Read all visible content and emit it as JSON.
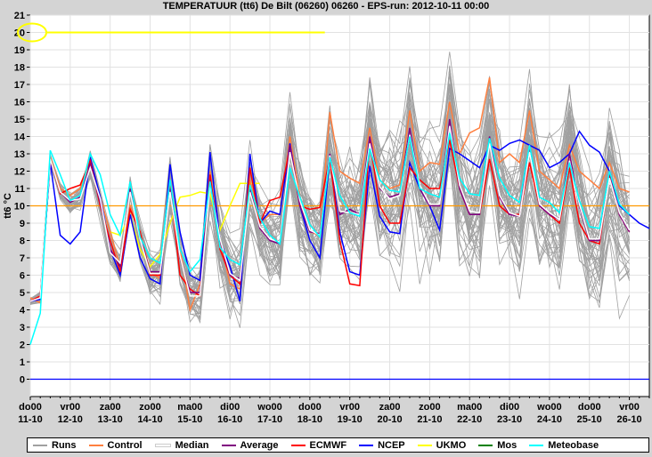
{
  "chart_data": {
    "type": "line",
    "title": "TEMPERATUUR (tt6) De Bilt (06260) 06260 - EPS-run: 2012-10-11 00:00",
    "ylabel": "tt6 °C",
    "xlabel": "",
    "ylim": [
      -1,
      21
    ],
    "yticks": [
      0,
      1,
      2,
      3,
      4,
      5,
      6,
      7,
      8,
      9,
      10,
      11,
      12,
      13,
      14,
      15,
      16,
      17,
      18,
      19,
      20,
      21
    ],
    "x_step_hours": 6,
    "xlim": [
      0,
      62
    ],
    "xticks": [
      {
        "x": 0,
        "day": "do00",
        "date": "11-10"
      },
      {
        "x": 4,
        "day": "vr00",
        "date": "12-10"
      },
      {
        "x": 8,
        "day": "za00",
        "date": "13-10"
      },
      {
        "x": 12,
        "day": "zo00",
        "date": "14-10"
      },
      {
        "x": 16,
        "day": "ma00",
        "date": "15-10"
      },
      {
        "x": 20,
        "day": "di00",
        "date": "16-10"
      },
      {
        "x": 24,
        "day": "wo00",
        "date": "17-10"
      },
      {
        "x": 28,
        "day": "do00",
        "date": "18-10"
      },
      {
        "x": 32,
        "day": "vr00",
        "date": "19-10"
      },
      {
        "x": 36,
        "day": "za00",
        "date": "20-10"
      },
      {
        "x": 40,
        "day": "zo00",
        "date": "21-10"
      },
      {
        "x": 44,
        "day": "ma00",
        "date": "22-10"
      },
      {
        "x": 48,
        "day": "di00",
        "date": "23-10"
      },
      {
        "x": 52,
        "day": "wo00",
        "date": "24-10"
      },
      {
        "x": 56,
        "day": "do00",
        "date": "25-10"
      },
      {
        "x": 60,
        "day": "vr00",
        "date": "26-10"
      }
    ],
    "reference_lines": [
      {
        "y": 10,
        "color": "#ff9900"
      },
      {
        "y": 0,
        "color": "#0000ff"
      }
    ],
    "highlight": {
      "y": 20,
      "x_end": 29.5,
      "color": "#ffff00"
    },
    "grid": true,
    "legend_position": "bottom",
    "series": [
      {
        "name": "Control",
        "color": "#ff7f3f",
        "values": [
          4.7,
          4.4,
          12.8,
          11,
          10.6,
          11,
          12.5,
          10.5,
          8.5,
          6.5,
          10,
          8.5,
          6.2,
          5.8,
          11,
          7.5,
          4,
          5.5,
          12,
          8,
          5.5,
          5.2,
          11.5,
          9,
          9.5,
          9.5,
          14,
          10.5,
          8.5,
          8.3,
          15.4,
          12,
          11.6,
          11.3,
          14.5,
          11.5,
          11,
          11.2,
          15.5,
          12,
          12.5,
          12.4,
          16,
          13,
          14.2,
          14.5,
          17.4,
          12.5,
          13,
          12.5,
          15.5,
          12,
          11.5,
          11,
          13.5,
          12,
          11.5,
          11,
          12.5,
          11,
          10.8,
          null,
          null
        ]
      },
      {
        "name": "Average",
        "color": "#800080",
        "values": [
          4.5,
          4.7,
          12.6,
          10.8,
          10.2,
          10.5,
          12.4,
          10.2,
          7.5,
          6.5,
          11,
          8.2,
          6.2,
          6.2,
          11,
          7,
          5,
          5,
          11.5,
          8,
          6,
          5.8,
          11,
          8.7,
          8,
          7.8,
          13.5,
          10,
          8.5,
          8.4,
          13,
          9.5,
          9.8,
          9.5,
          14,
          11,
          10.5,
          10.7,
          14.5,
          11,
          10,
          10,
          15,
          11,
          9.5,
          9.5,
          14,
          10.5,
          9.5,
          9.4,
          13.5,
          10,
          9.5,
          9.2,
          13,
          10,
          8,
          8,
          12,
          9.5,
          8.5,
          null,
          null
        ]
      },
      {
        "name": "ECMWF",
        "color": "#ff0000",
        "values": [
          4.5,
          4.8,
          12.7,
          10.7,
          11,
          11.2,
          12.6,
          10,
          8,
          6.2,
          9.8,
          8.5,
          6,
          6,
          11.2,
          6,
          5.2,
          4.8,
          11.8,
          7.5,
          6,
          5.5,
          12.2,
          9,
          10.3,
          10.5,
          13.3,
          10,
          9.8,
          9.9,
          12.8,
          8,
          5.5,
          5.4,
          13.8,
          10,
          9,
          9,
          12.2,
          11.5,
          11,
          11,
          13.8,
          11,
          9.5,
          9.5,
          12.7,
          10,
          9.5,
          9.5,
          12.5,
          10,
          9.5,
          9,
          12.2,
          9,
          8,
          7.8,
          11.8,
          9.5,
          8.5,
          null,
          null
        ]
      },
      {
        "name": "NCEP",
        "color": "#0000ff",
        "values": [
          4.5,
          4.6,
          12.5,
          8.3,
          7.8,
          8.5,
          12.8,
          10.5,
          7.5,
          6,
          9.5,
          7,
          5.8,
          5.5,
          12.4,
          8.5,
          6,
          5.7,
          13.1,
          8,
          6.5,
          4.5,
          13,
          9,
          9.7,
          9.5,
          13.6,
          10,
          8,
          7,
          12.8,
          8.5,
          6.2,
          6,
          12.3,
          9.4,
          8.5,
          8.4,
          12.5,
          11,
          10,
          8.6,
          13.3,
          13,
          12.6,
          12.2,
          13.5,
          13.2,
          13.6,
          13.8,
          13.5,
          13.2,
          12.2,
          12.5,
          13,
          14.3,
          13.5,
          13.1,
          12,
          10,
          9.5,
          9,
          8.7
        ]
      },
      {
        "name": "UKMO",
        "color": "#ffff00",
        "values": [
          null,
          null,
          null,
          null,
          null,
          null,
          null,
          null,
          8.5,
          8.3,
          9.5,
          7.5,
          6.5,
          7.2,
          9,
          10.5,
          10.6,
          10.8,
          10.7,
          8.6,
          10,
          11.3,
          11.3,
          11.3,
          null,
          null,
          null,
          null,
          null,
          null,
          null,
          null,
          null,
          null,
          null,
          null,
          null,
          null,
          null,
          null,
          null,
          null,
          null,
          null,
          null,
          null,
          null,
          null,
          null,
          null,
          null,
          null,
          null,
          null,
          null,
          null,
          null,
          null,
          null,
          null,
          null,
          null,
          null
        ]
      },
      {
        "name": "Median",
        "color": "#ffffff",
        "values": [
          4.5,
          4.7,
          12.7,
          10.8,
          10.3,
          10.4,
          12.2,
          10.4,
          7.3,
          6.7,
          10.8,
          8.1,
          6.1,
          6.1,
          10.8,
          7.1,
          4.8,
          4.8,
          11.2,
          8.1,
          6.1,
          5.7,
          10.8,
          8.8,
          8.1,
          7.9,
          13.1,
          10.3,
          8.6,
          8.3,
          12.9,
          9.7,
          9.6,
          9.5,
          13.6,
          11.1,
          10.4,
          10.6,
          14.1,
          11.2,
          10.1,
          10.1,
          14.6,
          11.2,
          9.7,
          9.6,
          13.6,
          10.6,
          9.6,
          9.4,
          13.1,
          10.1,
          9.6,
          9.2,
          12.6,
          10.1,
          8.1,
          8.1,
          11.6,
          9.6,
          8.6,
          null,
          null
        ]
      },
      {
        "name": "Meteobase",
        "color": "#00ffff",
        "values": [
          2,
          3.8,
          13.2,
          11.8,
          10.3,
          10.6,
          13,
          11.8,
          9.5,
          8.3,
          11.4,
          8.2,
          7,
          6.7,
          11.5,
          7.5,
          6.2,
          6.9,
          11.4,
          7.6,
          6.9,
          6.6,
          11.2,
          9.3,
          8.3,
          7.8,
          12.2,
          10.5,
          8.9,
          8.2,
          12.8,
          10.6,
          9.6,
          9.4,
          13.3,
          11.5,
          10.9,
          10.8,
          14,
          11,
          10.7,
          10.5,
          14.2,
          11.6,
          10.7,
          10.6,
          13.9,
          11.6,
          10.6,
          10.2,
          13.5,
          10.5,
          10.2,
          9.6,
          12.5,
          10.3,
          8.8,
          8.7,
          12,
          10.1,
          9.5,
          null,
          null
        ]
      }
    ],
    "runs": {
      "name": "Runs",
      "color": "#a0a0a0",
      "count": 50
    },
    "legend": [
      {
        "name": "Runs",
        "color": "#a0a0a0"
      },
      {
        "name": "Control",
        "color": "#ff7f3f"
      },
      {
        "name": "Median",
        "color": "#ffffff"
      },
      {
        "name": "Average",
        "color": "#800080"
      },
      {
        "name": "ECMWF",
        "color": "#ff0000"
      },
      {
        "name": "NCEP",
        "color": "#0000ff"
      },
      {
        "name": "UKMO",
        "color": "#ffff00"
      },
      {
        "name": "Mos",
        "color": "#008000"
      },
      {
        "name": "Meteobase",
        "color": "#00ffff"
      }
    ]
  }
}
